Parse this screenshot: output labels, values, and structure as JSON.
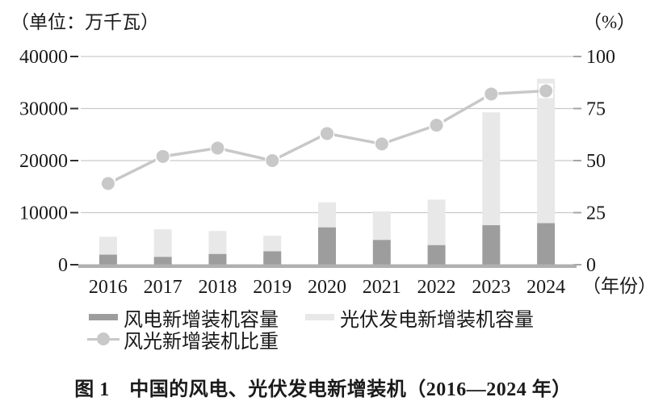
{
  "figure": {
    "unit_left": "（单位：万千瓦）",
    "unit_right": "（%）",
    "xaxis_suffix": "（年份）",
    "caption": "图 1　中国的风电、光伏发电新增装机（2016—2024 年）"
  },
  "legend": {
    "items": [
      {
        "label": "风电新增装机容量",
        "marker": "bar",
        "color": "#9d9d9d"
      },
      {
        "label": "光伏发电新增装机容量",
        "marker": "bar",
        "color": "#e8e8e8"
      },
      {
        "label": "风光新增装机比重",
        "marker": "line-dot",
        "color": "#c8c8c8"
      }
    ]
  },
  "chart_data": {
    "type": "bar",
    "title": "图1 中国的风电、光伏发电新增装机（2016—2024年）",
    "categories": [
      "2016",
      "2017",
      "2018",
      "2019",
      "2020",
      "2021",
      "2022",
      "2023",
      "2024"
    ],
    "series": [
      {
        "name": "风电新增装机容量",
        "type": "bar",
        "stack": "new-capacity",
        "axis": "left",
        "color": "#9d9d9d",
        "values": [
          1930,
          1503,
          2059,
          2574,
          7167,
          4757,
          3763,
          7590,
          7982
        ]
      },
      {
        "name": "光伏发电新增装机容量",
        "type": "bar",
        "stack": "new-capacity",
        "axis": "left",
        "color": "#e8e8e8",
        "values": [
          3454,
          5306,
          4426,
          3011,
          4820,
          5488,
          8741,
          21688,
          27757
        ]
      },
      {
        "name": "风光新增装机比重",
        "type": "line",
        "axis": "right",
        "color": "#c8c8c8",
        "marker_color": "#c8c8c8",
        "values": [
          39,
          52,
          56,
          50,
          63,
          58,
          67,
          82,
          83.5
        ]
      }
    ],
    "left_axis": {
      "unit": "（单位：万千瓦）",
      "range": [
        0,
        40000
      ],
      "ticks": [
        0,
        10000,
        20000,
        30000,
        40000
      ]
    },
    "right_axis": {
      "unit": "（%）",
      "range": [
        0,
        100
      ],
      "ticks": [
        0,
        25,
        50,
        75,
        100
      ]
    },
    "xlabel_suffix": "（年份）",
    "grid": true,
    "legend_position": "bottom"
  }
}
